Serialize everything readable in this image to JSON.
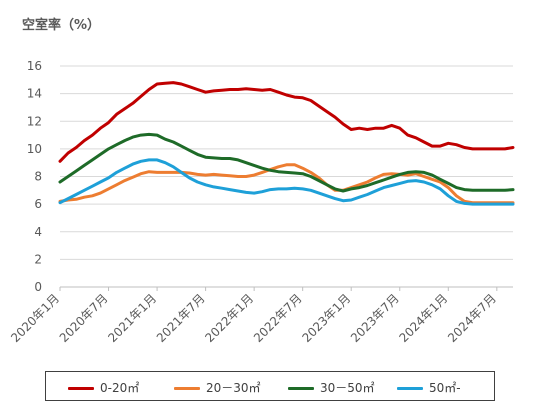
{
  "chart_data": {
    "type": "line",
    "title": "",
    "ylabel": "空室率（%）",
    "xlabel": "",
    "ylim": [
      0,
      16
    ],
    "yticks": [
      "0",
      "2",
      "4",
      "6",
      "8",
      "10",
      "12",
      "14",
      "16"
    ],
    "xtick_labels": [
      "2020年1月",
      "2020年7月",
      "2021年1月",
      "2021年7月",
      "2022年1月",
      "2022年7月",
      "2023年1月",
      "2023年7月",
      "2024年1月",
      "2024年7月"
    ],
    "x": [
      "2020-01",
      "2020-02",
      "2020-03",
      "2020-04",
      "2020-05",
      "2020-06",
      "2020-07",
      "2020-08",
      "2020-09",
      "2020-10",
      "2020-11",
      "2020-12",
      "2021-01",
      "2021-02",
      "2021-03",
      "2021-04",
      "2021-05",
      "2021-06",
      "2021-07",
      "2021-08",
      "2021-09",
      "2021-10",
      "2021-11",
      "2021-12",
      "2022-01",
      "2022-02",
      "2022-03",
      "2022-04",
      "2022-05",
      "2022-06",
      "2022-07",
      "2022-08",
      "2022-09",
      "2022-10",
      "2022-11",
      "2022-12",
      "2023-01",
      "2023-02",
      "2023-03",
      "2023-04",
      "2023-05",
      "2023-06",
      "2023-07",
      "2023-08",
      "2023-09",
      "2023-10",
      "2023-11",
      "2023-12",
      "2024-01",
      "2024-02",
      "2024-03",
      "2024-04",
      "2024-05",
      "2024-06",
      "2024-07",
      "2024-08",
      "2024-09"
    ],
    "grid": "horizontal",
    "legend_position": "bottom",
    "series": [
      {
        "name": "0-20㎡",
        "color": "#c00000",
        "values": [
          9.1,
          9.7,
          10.1,
          10.6,
          11.0,
          11.5,
          11.9,
          12.5,
          12.9,
          13.3,
          13.8,
          14.3,
          14.7,
          14.75,
          14.8,
          14.7,
          14.5,
          14.3,
          14.1,
          14.2,
          14.25,
          14.3,
          14.3,
          14.35,
          14.3,
          14.25,
          14.3,
          14.1,
          13.9,
          13.75,
          13.7,
          13.5,
          13.1,
          12.7,
          12.3,
          11.8,
          11.4,
          11.5,
          11.4,
          11.5,
          11.5,
          11.7,
          11.5,
          11.0,
          10.8,
          10.5,
          10.2,
          10.2,
          10.4,
          10.3,
          10.1,
          10.0,
          10.0,
          10.0,
          10.0,
          10.0,
          10.1
        ]
      },
      {
        "name": "20－30㎡",
        "color": "#ed7d31",
        "values": [
          6.2,
          6.3,
          6.35,
          6.5,
          6.6,
          6.8,
          7.1,
          7.4,
          7.7,
          7.95,
          8.2,
          8.35,
          8.3,
          8.3,
          8.3,
          8.3,
          8.25,
          8.15,
          8.1,
          8.15,
          8.1,
          8.05,
          8.0,
          8.0,
          8.1,
          8.3,
          8.5,
          8.7,
          8.85,
          8.85,
          8.6,
          8.3,
          7.9,
          7.4,
          7.0,
          7.0,
          7.2,
          7.4,
          7.6,
          7.9,
          8.15,
          8.2,
          8.15,
          8.1,
          8.2,
          8.0,
          7.8,
          7.6,
          7.2,
          6.6,
          6.2,
          6.1,
          6.1,
          6.1,
          6.1,
          6.1,
          6.1
        ]
      },
      {
        "name": "30－50㎡",
        "color": "#1e6b28",
        "values": [
          7.6,
          8.0,
          8.4,
          8.8,
          9.2,
          9.6,
          10.0,
          10.3,
          10.6,
          10.85,
          11.0,
          11.05,
          11.0,
          10.7,
          10.5,
          10.2,
          9.9,
          9.6,
          9.4,
          9.35,
          9.3,
          9.3,
          9.2,
          9.0,
          8.8,
          8.6,
          8.45,
          8.35,
          8.3,
          8.25,
          8.2,
          8.0,
          7.7,
          7.4,
          7.1,
          6.95,
          7.1,
          7.2,
          7.35,
          7.55,
          7.75,
          7.95,
          8.15,
          8.3,
          8.35,
          8.3,
          8.1,
          7.8,
          7.5,
          7.2,
          7.05,
          7.0,
          7.0,
          7.0,
          7.0,
          7.0,
          7.05
        ]
      },
      {
        "name": "50㎡-",
        "color": "#1ea0d8",
        "values": [
          6.1,
          6.4,
          6.7,
          7.0,
          7.3,
          7.6,
          7.9,
          8.3,
          8.6,
          8.9,
          9.1,
          9.2,
          9.2,
          9.0,
          8.7,
          8.3,
          7.9,
          7.6,
          7.4,
          7.25,
          7.15,
          7.05,
          6.95,
          6.85,
          6.8,
          6.9,
          7.05,
          7.1,
          7.1,
          7.15,
          7.1,
          7.0,
          6.8,
          6.6,
          6.4,
          6.25,
          6.3,
          6.5,
          6.7,
          6.95,
          7.2,
          7.35,
          7.5,
          7.65,
          7.7,
          7.6,
          7.4,
          7.1,
          6.6,
          6.2,
          6.05,
          6.0,
          6.0,
          6.0,
          6.0,
          6.0,
          6.0
        ]
      }
    ]
  }
}
